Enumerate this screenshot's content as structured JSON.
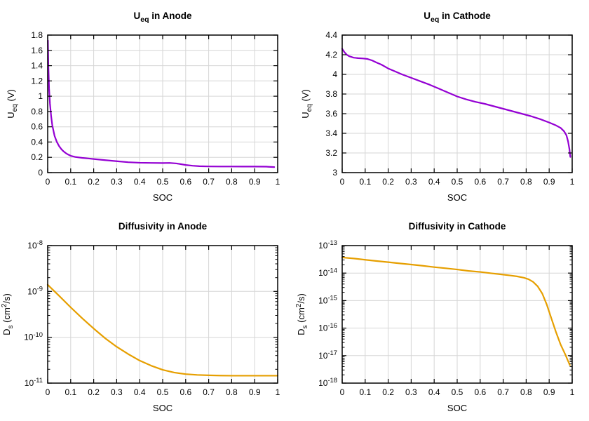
{
  "page": {
    "background": "#ffffff",
    "description": "2x2 grid of battery electrode property plots"
  },
  "style": {
    "curve_purple": "#9400d3",
    "curve_orange": "#e69f00",
    "grid_color": "#d6d6d6",
    "axis_color": "#000000",
    "text_color": "#000000",
    "background": "#ffffff"
  },
  "chart_data": [
    {
      "name": "ueq-anode",
      "type": "line",
      "title": "U_eq in Anode",
      "title_segments": [
        {
          "t": "U"
        },
        {
          "t": "eq",
          "style": "sub"
        },
        {
          "t": " in Anode"
        }
      ],
      "xlabel": "SOC",
      "ylabel": "U_eq (V)",
      "ylabel_segments": [
        {
          "t": "U"
        },
        {
          "t": "eq",
          "style": "sub"
        },
        {
          "t": " (V)"
        }
      ],
      "xlim": [
        0,
        1
      ],
      "x_ticks": [
        0,
        0.1,
        0.2,
        0.3,
        0.4,
        0.5,
        0.6,
        0.7,
        0.8,
        0.9,
        1
      ],
      "x_tick_labels": [
        "0",
        "0.1",
        "0.2",
        "0.3",
        "0.4",
        "0.5",
        "0.6",
        "0.7",
        "0.8",
        "0.9",
        "1"
      ],
      "y_scale": "linear",
      "ylim": [
        0,
        1.8
      ],
      "y_ticks": [
        0,
        0.2,
        0.4,
        0.6,
        0.8,
        1,
        1.2,
        1.4,
        1.6,
        1.8
      ],
      "y_tick_labels": [
        "0",
        "0.2",
        "0.4",
        "0.6",
        "0.8",
        "1",
        "1.2",
        "1.4",
        "1.6",
        "1.8"
      ],
      "grid": true,
      "series": [
        {
          "color": "#9400d3",
          "x": [
            0.001,
            0.003,
            0.006,
            0.01,
            0.015,
            0.02,
            0.03,
            0.04,
            0.05,
            0.06,
            0.07,
            0.08,
            0.09,
            0.1,
            0.12,
            0.15,
            0.18,
            0.2,
            0.25,
            0.3,
            0.35,
            0.4,
            0.45,
            0.5,
            0.53,
            0.56,
            0.58,
            0.6,
            0.63,
            0.66,
            0.7,
            0.75,
            0.8,
            0.85,
            0.9,
            0.95,
            0.985
          ],
          "y": [
            1.73,
            1.4,
            1.1,
            0.9,
            0.74,
            0.62,
            0.48,
            0.4,
            0.345,
            0.305,
            0.275,
            0.252,
            0.235,
            0.22,
            0.205,
            0.193,
            0.184,
            0.178,
            0.163,
            0.149,
            0.136,
            0.129,
            0.127,
            0.125,
            0.127,
            0.12,
            0.11,
            0.1,
            0.09,
            0.084,
            0.081,
            0.08,
            0.08,
            0.079,
            0.079,
            0.078,
            0.072
          ]
        }
      ]
    },
    {
      "name": "ueq-cathode",
      "type": "line",
      "title": "U_eq in Cathode",
      "title_segments": [
        {
          "t": "U"
        },
        {
          "t": "eq",
          "style": "sub"
        },
        {
          "t": " in Cathode"
        }
      ],
      "xlabel": "SOC",
      "ylabel": "U_eq (V)",
      "ylabel_segments": [
        {
          "t": "U"
        },
        {
          "t": "eq",
          "style": "sub"
        },
        {
          "t": " (V)"
        }
      ],
      "xlim": [
        0,
        1
      ],
      "x_ticks": [
        0,
        0.1,
        0.2,
        0.3,
        0.4,
        0.5,
        0.6,
        0.7,
        0.8,
        0.9,
        1
      ],
      "x_tick_labels": [
        "0",
        "0.1",
        "0.2",
        "0.3",
        "0.4",
        "0.5",
        "0.6",
        "0.7",
        "0.8",
        "0.9",
        "1"
      ],
      "y_scale": "linear",
      "ylim": [
        3,
        4.4
      ],
      "y_ticks": [
        3,
        3.2,
        3.4,
        3.6,
        3.8,
        4,
        4.2,
        4.4
      ],
      "y_tick_labels": [
        "3",
        "3.2",
        "3.4",
        "3.6",
        "3.8",
        "4",
        "4.2",
        "4.4"
      ],
      "grid": true,
      "series": [
        {
          "color": "#9400d3",
          "x": [
            0.0,
            0.01,
            0.02,
            0.03,
            0.05,
            0.07,
            0.09,
            0.11,
            0.13,
            0.15,
            0.17,
            0.2,
            0.23,
            0.26,
            0.3,
            0.34,
            0.38,
            0.42,
            0.46,
            0.5,
            0.54,
            0.58,
            0.62,
            0.66,
            0.7,
            0.74,
            0.78,
            0.82,
            0.86,
            0.9,
            0.93,
            0.95,
            0.965,
            0.975,
            0.982,
            0.988,
            0.992
          ],
          "y": [
            4.26,
            4.225,
            4.2,
            4.185,
            4.17,
            4.165,
            4.162,
            4.157,
            4.142,
            4.12,
            4.1,
            4.06,
            4.03,
            4.0,
            3.965,
            3.93,
            3.895,
            3.855,
            3.815,
            3.775,
            3.745,
            3.72,
            3.7,
            3.675,
            3.65,
            3.625,
            3.6,
            3.575,
            3.545,
            3.51,
            3.48,
            3.455,
            3.42,
            3.38,
            3.32,
            3.24,
            3.16
          ]
        }
      ]
    },
    {
      "name": "diffusivity-anode",
      "type": "line",
      "title": "Diffusivity in Anode",
      "title_segments": [
        {
          "t": "Diffusivity in Anode"
        }
      ],
      "xlabel": "SOC",
      "ylabel": "D_s (cm^2/s)",
      "ylabel_segments": [
        {
          "t": "D"
        },
        {
          "t": "s",
          "style": "sub"
        },
        {
          "t": " (cm"
        },
        {
          "t": "2",
          "style": "sup"
        },
        {
          "t": "/s)"
        }
      ],
      "xlim": [
        0,
        1
      ],
      "x_ticks": [
        0,
        0.1,
        0.2,
        0.3,
        0.4,
        0.5,
        0.6,
        0.7,
        0.8,
        0.9,
        1
      ],
      "x_tick_labels": [
        "0",
        "0.1",
        "0.2",
        "0.3",
        "0.4",
        "0.5",
        "0.6",
        "0.7",
        "0.8",
        "0.9",
        "1"
      ],
      "y_scale": "log",
      "ylim_exp": [
        -11,
        -8
      ],
      "y_tick_exponents": [
        -11,
        -10,
        -9,
        -8
      ],
      "grid": true,
      "series": [
        {
          "color": "#e69f00",
          "x": [
            0,
            0.05,
            0.1,
            0.15,
            0.2,
            0.25,
            0.3,
            0.35,
            0.4,
            0.45,
            0.5,
            0.55,
            0.6,
            0.65,
            0.7,
            0.75,
            0.8,
            0.85,
            0.9,
            0.95,
            1.0
          ],
          "y": [
            1.4e-09,
            8e-10,
            4.5e-10,
            2.6e-10,
            1.55e-10,
            9.5e-11,
            6.2e-11,
            4.3e-11,
            3.1e-11,
            2.4e-11,
            1.95e-11,
            1.7e-11,
            1.57e-11,
            1.51e-11,
            1.48e-11,
            1.46e-11,
            1.45e-11,
            1.45e-11,
            1.45e-11,
            1.45e-11,
            1.45e-11
          ]
        }
      ]
    },
    {
      "name": "diffusivity-cathode",
      "type": "line",
      "title": "Diffusivity in Cathode",
      "title_segments": [
        {
          "t": "Diffusivity in Cathode"
        }
      ],
      "xlabel": "SOC",
      "ylabel": "D_s (cm^2/s)",
      "ylabel_segments": [
        {
          "t": "D"
        },
        {
          "t": "s",
          "style": "sub"
        },
        {
          "t": " (cm"
        },
        {
          "t": "2",
          "style": "sup"
        },
        {
          "t": "/s)"
        }
      ],
      "xlim": [
        0,
        1
      ],
      "x_ticks": [
        0,
        0.1,
        0.2,
        0.3,
        0.4,
        0.5,
        0.6,
        0.7,
        0.8,
        0.9,
        1
      ],
      "x_tick_labels": [
        "0",
        "0.1",
        "0.2",
        "0.3",
        "0.4",
        "0.5",
        "0.6",
        "0.7",
        "0.8",
        "0.9",
        "1"
      ],
      "y_scale": "log",
      "ylim_exp": [
        -18,
        -13
      ],
      "y_tick_exponents": [
        -18,
        -17,
        -16,
        -15,
        -14,
        -13
      ],
      "grid": true,
      "series": [
        {
          "color": "#e69f00",
          "x": [
            0,
            0.05,
            0.1,
            0.15,
            0.2,
            0.25,
            0.3,
            0.35,
            0.4,
            0.45,
            0.5,
            0.55,
            0.6,
            0.65,
            0.7,
            0.73,
            0.76,
            0.79,
            0.81,
            0.83,
            0.85,
            0.87,
            0.89,
            0.91,
            0.93,
            0.95,
            0.97,
            0.98,
            0.99
          ],
          "y": [
            3.7e-14,
            3.4e-14,
            3.05e-14,
            2.75e-14,
            2.5e-14,
            2.25e-14,
            2.05e-14,
            1.85e-14,
            1.65e-14,
            1.5e-14,
            1.35e-14,
            1.2e-14,
            1.1e-14,
            9.8e-15,
            8.8e-15,
            8.2e-15,
            7.6e-15,
            6.8e-15,
            6e-15,
            4.8e-15,
            3.3e-15,
            1.8e-15,
            7e-16,
            2.2e-16,
            7e-17,
            2.5e-17,
            1.1e-17,
            7e-18,
            4.5e-18
          ]
        }
      ]
    }
  ]
}
